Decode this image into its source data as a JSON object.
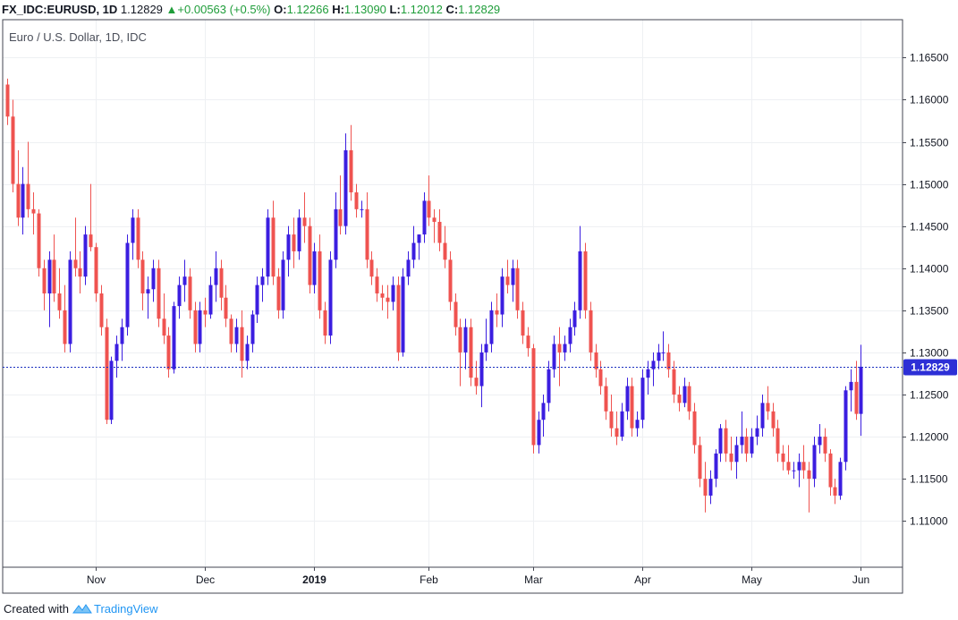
{
  "header": {
    "symbol": "FX_IDC:EURUSD, 1D",
    "last": "1.12829",
    "change": "+0.00563 (+0.5%)",
    "o_label": "O:",
    "o_value": "1.12266",
    "h_label": "H:",
    "h_value": "1.13090",
    "l_label": "L:",
    "l_value": "1.12012",
    "c_label": "C:",
    "c_value": "1.12829"
  },
  "footer": {
    "created": "Created with",
    "brand": "TradingView"
  },
  "colors": {
    "up": "#3b1ee0",
    "down": "#ef5350",
    "price_line": "#1a2fbf",
    "price_label_bg": "#2d2fd6",
    "grid": "#eef0f3"
  },
  "chart_data": {
    "type": "candlestick",
    "title": "Euro / U.S. Dollar, 1D, IDC",
    "y_range": [
      1.1045,
      1.1695
    ],
    "y_ticks": [
      "1.16500",
      "1.16000",
      "1.15500",
      "1.15000",
      "1.14500",
      "1.14000",
      "1.13500",
      "1.13000",
      "1.12500",
      "1.12000",
      "1.11500",
      "1.11000"
    ],
    "x_ticks": [
      {
        "label": "Nov",
        "index": 17
      },
      {
        "label": "Dec",
        "index": 38
      },
      {
        "label": "2019",
        "index": 59,
        "bold": true
      },
      {
        "label": "Feb",
        "index": 81
      },
      {
        "label": "Mar",
        "index": 101
      },
      {
        "label": "Apr",
        "index": 122
      },
      {
        "label": "May",
        "index": 143
      },
      {
        "label": "Jun",
        "index": 164
      }
    ],
    "last_price": "1.12829",
    "candles": [
      [
        1.1618,
        1.1625,
        1.157,
        1.158
      ],
      [
        1.158,
        1.16,
        1.149,
        1.15
      ],
      [
        1.15,
        1.154,
        1.145,
        1.146
      ],
      [
        1.146,
        1.152,
        1.144,
        1.15
      ],
      [
        1.15,
        1.155,
        1.146,
        1.147
      ],
      [
        1.147,
        1.149,
        1.144,
        1.1465
      ],
      [
        1.1465,
        1.147,
        1.139,
        1.14
      ],
      [
        1.14,
        1.141,
        1.135,
        1.137
      ],
      [
        1.137,
        1.142,
        1.133,
        1.141
      ],
      [
        1.141,
        1.144,
        1.136,
        1.137
      ],
      [
        1.137,
        1.14,
        1.134,
        1.135
      ],
      [
        1.135,
        1.138,
        1.13,
        1.131
      ],
      [
        1.131,
        1.142,
        1.13,
        1.141
      ],
      [
        1.141,
        1.146,
        1.139,
        1.14
      ],
      [
        1.14,
        1.142,
        1.137,
        1.139
      ],
      [
        1.139,
        1.145,
        1.138,
        1.144
      ],
      [
        1.144,
        1.15,
        1.142,
        1.1425
      ],
      [
        1.1425,
        1.143,
        1.136,
        1.137
      ],
      [
        1.137,
        1.138,
        1.132,
        1.133
      ],
      [
        1.133,
        1.134,
        1.1215,
        1.122
      ],
      [
        1.122,
        1.1295,
        1.1215,
        1.129
      ],
      [
        1.129,
        1.132,
        1.127,
        1.131
      ],
      [
        1.131,
        1.134,
        1.129,
        1.133
      ],
      [
        1.133,
        1.144,
        1.132,
        1.143
      ],
      [
        1.143,
        1.147,
        1.141,
        1.146
      ],
      [
        1.146,
        1.147,
        1.14,
        1.141
      ],
      [
        1.141,
        1.142,
        1.135,
        1.137
      ],
      [
        1.137,
        1.139,
        1.134,
        1.1375
      ],
      [
        1.1375,
        1.141,
        1.136,
        1.14
      ],
      [
        1.14,
        1.141,
        1.133,
        1.134
      ],
      [
        1.134,
        1.137,
        1.131,
        1.132
      ],
      [
        1.132,
        1.133,
        1.127,
        1.128
      ],
      [
        1.128,
        1.136,
        1.1275,
        1.1355
      ],
      [
        1.1355,
        1.139,
        1.134,
        1.138
      ],
      [
        1.138,
        1.141,
        1.136,
        1.139
      ],
      [
        1.139,
        1.14,
        1.134,
        1.135
      ],
      [
        1.135,
        1.136,
        1.13,
        1.131
      ],
      [
        1.131,
        1.136,
        1.13,
        1.135
      ],
      [
        1.135,
        1.1365,
        1.133,
        1.1345
      ],
      [
        1.1345,
        1.139,
        1.134,
        1.138
      ],
      [
        1.138,
        1.142,
        1.136,
        1.14
      ],
      [
        1.14,
        1.141,
        1.135,
        1.1365
      ],
      [
        1.1365,
        1.138,
        1.133,
        1.134
      ],
      [
        1.134,
        1.1345,
        1.13,
        1.131
      ],
      [
        1.131,
        1.134,
        1.13,
        1.133
      ],
      [
        1.133,
        1.135,
        1.127,
        1.129
      ],
      [
        1.129,
        1.132,
        1.128,
        1.131
      ],
      [
        1.131,
        1.135,
        1.13,
        1.1345
      ],
      [
        1.1345,
        1.139,
        1.1335,
        1.138
      ],
      [
        1.138,
        1.14,
        1.136,
        1.139
      ],
      [
        1.139,
        1.147,
        1.138,
        1.146
      ],
      [
        1.146,
        1.148,
        1.138,
        1.139
      ],
      [
        1.139,
        1.14,
        1.134,
        1.135
      ],
      [
        1.135,
        1.142,
        1.134,
        1.141
      ],
      [
        1.141,
        1.145,
        1.139,
        1.144
      ],
      [
        1.144,
        1.146,
        1.14,
        1.142
      ],
      [
        1.142,
        1.147,
        1.141,
        1.146
      ],
      [
        1.146,
        1.149,
        1.143,
        1.145
      ],
      [
        1.145,
        1.146,
        1.137,
        1.138
      ],
      [
        1.138,
        1.143,
        1.137,
        1.142
      ],
      [
        1.142,
        1.144,
        1.134,
        1.135
      ],
      [
        1.135,
        1.136,
        1.131,
        1.132
      ],
      [
        1.132,
        1.142,
        1.131,
        1.141
      ],
      [
        1.141,
        1.149,
        1.14,
        1.147
      ],
      [
        1.147,
        1.151,
        1.144,
        1.145
      ],
      [
        1.145,
        1.156,
        1.144,
        1.154
      ],
      [
        1.154,
        1.157,
        1.148,
        1.149
      ],
      [
        1.149,
        1.15,
        1.146,
        1.147
      ],
      [
        1.147,
        1.148,
        1.146,
        1.147
      ],
      [
        1.147,
        1.149,
        1.14,
        1.141
      ],
      [
        1.141,
        1.142,
        1.138,
        1.139
      ],
      [
        1.139,
        1.14,
        1.136,
        1.137
      ],
      [
        1.137,
        1.138,
        1.135,
        1.1365
      ],
      [
        1.1365,
        1.138,
        1.134,
        1.136
      ],
      [
        1.136,
        1.139,
        1.135,
        1.138
      ],
      [
        1.138,
        1.139,
        1.129,
        1.13
      ],
      [
        1.13,
        1.14,
        1.1295,
        1.139
      ],
      [
        1.139,
        1.142,
        1.138,
        1.141
      ],
      [
        1.141,
        1.145,
        1.14,
        1.143
      ],
      [
        1.143,
        1.144,
        1.141,
        1.144
      ],
      [
        1.144,
        1.149,
        1.143,
        1.148
      ],
      [
        1.148,
        1.151,
        1.145,
        1.146
      ],
      [
        1.146,
        1.147,
        1.143,
        1.1455
      ],
      [
        1.1455,
        1.147,
        1.142,
        1.143
      ],
      [
        1.143,
        1.145,
        1.14,
        1.141
      ],
      [
        1.141,
        1.142,
        1.135,
        1.136
      ],
      [
        1.136,
        1.137,
        1.132,
        1.133
      ],
      [
        1.133,
        1.134,
        1.126,
        1.13
      ],
      [
        1.13,
        1.134,
        1.128,
        1.133
      ],
      [
        1.133,
        1.134,
        1.126,
        1.127
      ],
      [
        1.127,
        1.129,
        1.125,
        1.126
      ],
      [
        1.126,
        1.131,
        1.1235,
        1.13
      ],
      [
        1.13,
        1.134,
        1.129,
        1.131
      ],
      [
        1.131,
        1.136,
        1.13,
        1.135
      ],
      [
        1.135,
        1.137,
        1.133,
        1.1345
      ],
      [
        1.1345,
        1.14,
        1.133,
        1.139
      ],
      [
        1.139,
        1.141,
        1.137,
        1.138
      ],
      [
        1.138,
        1.141,
        1.136,
        1.14
      ],
      [
        1.14,
        1.141,
        1.134,
        1.135
      ],
      [
        1.135,
        1.136,
        1.131,
        1.132
      ],
      [
        1.132,
        1.133,
        1.1295,
        1.1305
      ],
      [
        1.1305,
        1.131,
        1.118,
        1.119
      ],
      [
        1.119,
        1.123,
        1.118,
        1.122
      ],
      [
        1.122,
        1.125,
        1.12,
        1.124
      ],
      [
        1.124,
        1.129,
        1.123,
        1.128
      ],
      [
        1.128,
        1.132,
        1.127,
        1.131
      ],
      [
        1.131,
        1.133,
        1.126,
        1.13
      ],
      [
        1.13,
        1.132,
        1.129,
        1.131
      ],
      [
        1.131,
        1.134,
        1.13,
        1.133
      ],
      [
        1.133,
        1.136,
        1.132,
        1.135
      ],
      [
        1.135,
        1.145,
        1.134,
        1.142
      ],
      [
        1.142,
        1.143,
        1.134,
        1.135
      ],
      [
        1.135,
        1.136,
        1.129,
        1.13
      ],
      [
        1.13,
        1.131,
        1.127,
        1.128
      ],
      [
        1.128,
        1.129,
        1.125,
        1.126
      ],
      [
        1.126,
        1.127,
        1.122,
        1.123
      ],
      [
        1.123,
        1.125,
        1.12,
        1.121
      ],
      [
        1.121,
        1.123,
        1.119,
        1.12
      ],
      [
        1.12,
        1.124,
        1.1195,
        1.123
      ],
      [
        1.123,
        1.127,
        1.122,
        1.126
      ],
      [
        1.126,
        1.127,
        1.12,
        1.121
      ],
      [
        1.121,
        1.123,
        1.12,
        1.122
      ],
      [
        1.122,
        1.128,
        1.121,
        1.127
      ],
      [
        1.127,
        1.129,
        1.125,
        1.128
      ],
      [
        1.128,
        1.13,
        1.126,
        1.129
      ],
      [
        1.129,
        1.131,
        1.128,
        1.13
      ],
      [
        1.13,
        1.1325,
        1.129,
        1.13
      ],
      [
        1.13,
        1.131,
        1.127,
        1.128
      ],
      [
        1.128,
        1.129,
        1.124,
        1.125
      ],
      [
        1.125,
        1.126,
        1.123,
        1.124
      ],
      [
        1.124,
        1.127,
        1.1235,
        1.126
      ],
      [
        1.126,
        1.1265,
        1.122,
        1.123
      ],
      [
        1.123,
        1.124,
        1.118,
        1.119
      ],
      [
        1.119,
        1.12,
        1.114,
        1.115
      ],
      [
        1.115,
        1.117,
        1.111,
        1.113
      ],
      [
        1.113,
        1.116,
        1.112,
        1.115
      ],
      [
        1.115,
        1.1185,
        1.114,
        1.118
      ],
      [
        1.118,
        1.1215,
        1.117,
        1.121
      ],
      [
        1.121,
        1.122,
        1.117,
        1.118
      ],
      [
        1.118,
        1.12,
        1.116,
        1.117
      ],
      [
        1.117,
        1.12,
        1.115,
        1.119
      ],
      [
        1.119,
        1.123,
        1.118,
        1.12
      ],
      [
        1.12,
        1.121,
        1.117,
        1.118
      ],
      [
        1.118,
        1.121,
        1.1175,
        1.12
      ],
      [
        1.12,
        1.1225,
        1.119,
        1.121
      ],
      [
        1.121,
        1.125,
        1.12,
        1.124
      ],
      [
        1.124,
        1.126,
        1.122,
        1.123
      ],
      [
        1.123,
        1.124,
        1.12,
        1.121
      ],
      [
        1.121,
        1.122,
        1.117,
        1.118
      ],
      [
        1.118,
        1.119,
        1.116,
        1.117
      ],
      [
        1.117,
        1.119,
        1.1155,
        1.116
      ],
      [
        1.116,
        1.117,
        1.115,
        1.116
      ],
      [
        1.116,
        1.118,
        1.114,
        1.117
      ],
      [
        1.117,
        1.119,
        1.115,
        1.116
      ],
      [
        1.116,
        1.117,
        1.111,
        1.115
      ],
      [
        1.115,
        1.12,
        1.114,
        1.119
      ],
      [
        1.119,
        1.1215,
        1.118,
        1.12
      ],
      [
        1.12,
        1.121,
        1.117,
        1.118
      ],
      [
        1.118,
        1.1185,
        1.113,
        1.114
      ],
      [
        1.114,
        1.115,
        1.112,
        1.113
      ],
      [
        1.113,
        1.1175,
        1.1125,
        1.117
      ],
      [
        1.117,
        1.126,
        1.116,
        1.1255
      ],
      [
        1.1255,
        1.128,
        1.123,
        1.1265
      ],
      [
        1.1265,
        1.129,
        1.122,
        1.1227
      ],
      [
        1.1227,
        1.1309,
        1.1201,
        1.1283
      ]
    ]
  }
}
